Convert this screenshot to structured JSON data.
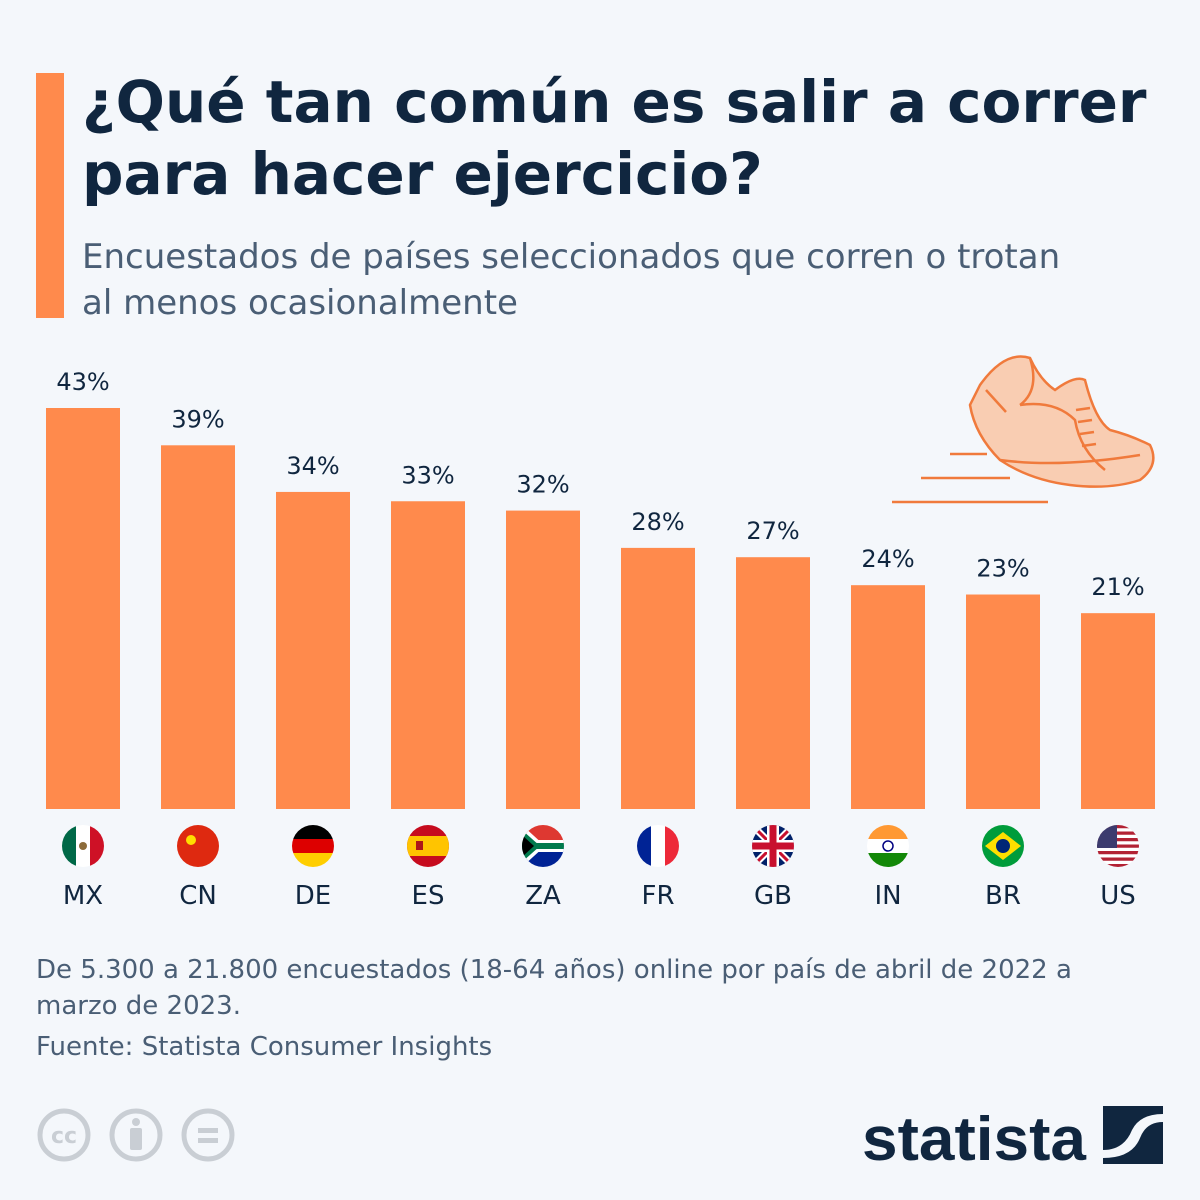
{
  "header": {
    "title": "¿Qué tan común es salir a correr para hacer ejercicio?",
    "subtitle": "Encuestados de países seleccionados que corren o trotan al menos ocasionalmente"
  },
  "colors": {
    "bar": "#ff8a4c",
    "accent": "#ff8a4c",
    "text": "#10263f",
    "muted": "#4a5e75"
  },
  "chart_data": {
    "type": "bar",
    "categories": [
      "MX",
      "CN",
      "DE",
      "ES",
      "ZA",
      "FR",
      "GB",
      "IN",
      "BR",
      "US"
    ],
    "values": [
      43,
      39,
      34,
      33,
      32,
      28,
      27,
      24,
      23,
      21
    ],
    "labels": [
      "43%",
      "39%",
      "34%",
      "33%",
      "32%",
      "28%",
      "27%",
      "24%",
      "23%",
      "21%"
    ],
    "unit": "%",
    "ylim": [
      0,
      43
    ],
    "grid": false,
    "legend": "none",
    "flags": true
  },
  "illustration": "running-shoe-icon",
  "footer": {
    "note": "De 5.300 a 21.800 encuestados (18-64 años) online por país de abril de 2022 a marzo de 2023.",
    "source": "Fuente: Statista Consumer Insights",
    "license_icons": [
      "cc-icon",
      "attribution-icon",
      "no-derivatives-icon"
    ],
    "brand": "statista"
  }
}
